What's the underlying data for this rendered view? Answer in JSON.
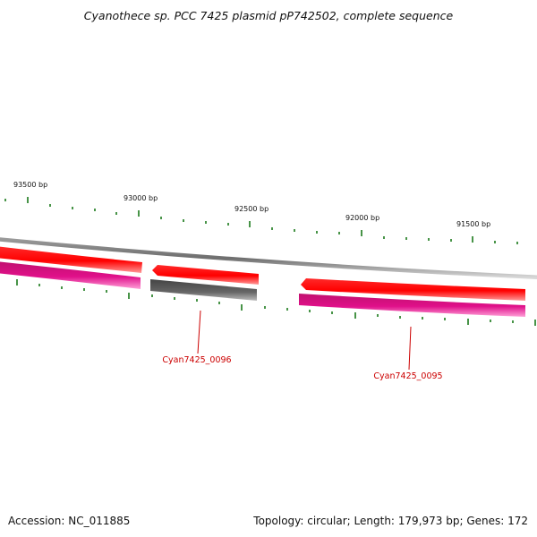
{
  "title": "Cyanothece sp. PCC 7425 plasmid pP742502, complete sequence",
  "ruler_labels": [
    "93500 bp",
    "93000 bp",
    "92500 bp",
    "92000 bp",
    "91500 bp"
  ],
  "genes": [
    {
      "id": "Cyan7425_0096",
      "label": "Cyan7425_0096"
    },
    {
      "id": "Cyan7425_0095",
      "label": "Cyan7425_0095"
    }
  ],
  "footer": {
    "accession": "Accession: NC_011885",
    "summary": "Topology: circular; Length: 179,973 bp; Genes: 172"
  },
  "colors": {
    "tick": "#1a7a1a",
    "backbone": "#888888",
    "cds_red": "#ff1a1a",
    "cds_magenta": "#e0108a",
    "gene_gray": "#666666",
    "label": "#cc0000"
  }
}
